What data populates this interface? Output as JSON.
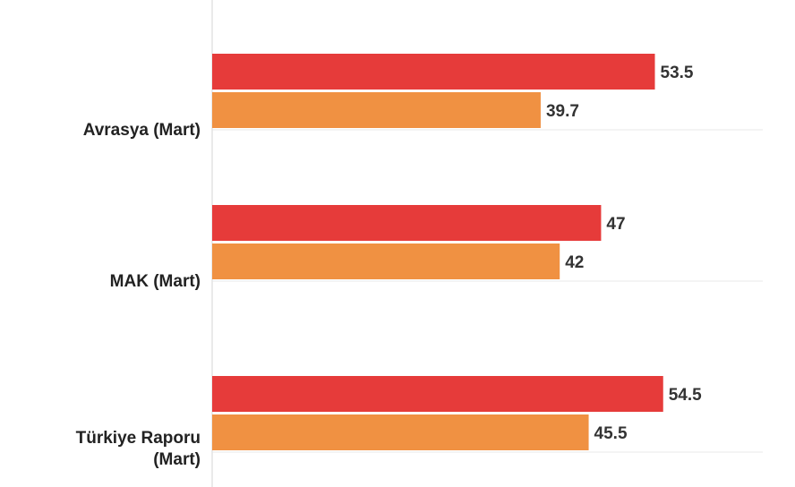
{
  "chart_data": {
    "type": "bar",
    "orientation": "horizontal",
    "categories": [
      "Avrasya (Mart)",
      "MAK (Mart)",
      "Türkiye Raporu (Mart)"
    ],
    "category_lines": [
      [
        "Avrasya (Mart)"
      ],
      [
        "MAK (Mart)"
      ],
      [
        "Türkiye Raporu",
        "(Mart)"
      ]
    ],
    "series": [
      {
        "color": "#e63b3a",
        "values": [
          53.5,
          47,
          54.5
        ]
      },
      {
        "color": "#f09142",
        "values": [
          39.7,
          42,
          45.5
        ]
      }
    ],
    "value_labels": [
      [
        "53.5",
        "47",
        "54.5"
      ],
      [
        "39.7",
        "42",
        "45.5"
      ]
    ],
    "xlim": [
      0,
      67
    ],
    "grid": false,
    "legend": "none"
  }
}
